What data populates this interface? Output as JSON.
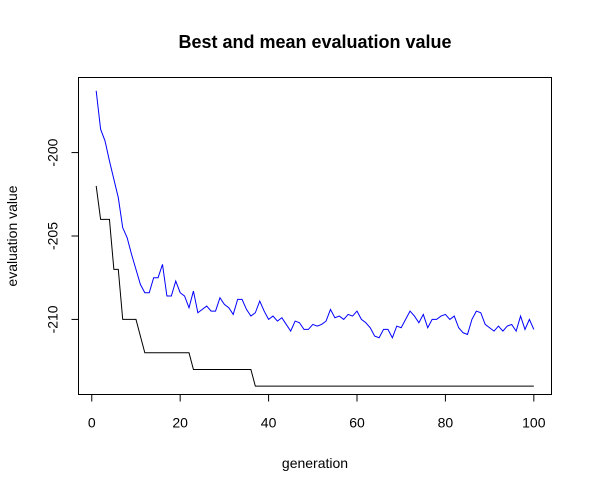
{
  "chart_data": {
    "type": "line",
    "title": "Best and mean evaluation value",
    "xlabel": "generation",
    "ylabel": "evaluation value",
    "xlim": [
      -3,
      104
    ],
    "ylim": [
      -214.5,
      -195.5
    ],
    "xticks": [
      0,
      20,
      40,
      60,
      80,
      100
    ],
    "yticks": [
      -200,
      -205,
      -210
    ],
    "grid": false,
    "legend": "none",
    "series": [
      {
        "color": "#0000ff",
        "x": [
          1,
          2,
          3,
          4,
          5,
          6,
          7,
          8,
          9,
          10,
          11,
          12,
          13,
          14,
          15,
          16,
          17,
          18,
          19,
          20,
          21,
          22,
          23,
          24,
          25,
          26,
          27,
          28,
          29,
          30,
          31,
          32,
          33,
          34,
          35,
          36,
          37,
          38,
          39,
          40,
          41,
          42,
          43,
          44,
          45,
          46,
          47,
          48,
          49,
          50,
          51,
          52,
          53,
          54,
          55,
          56,
          57,
          58,
          59,
          60,
          61,
          62,
          63,
          64,
          65,
          66,
          67,
          68,
          69,
          70,
          71,
          72,
          73,
          74,
          75,
          76,
          77,
          78,
          79,
          80,
          81,
          82,
          83,
          84,
          85,
          86,
          87,
          88,
          89,
          90,
          91,
          92,
          93,
          94,
          95,
          96,
          97,
          98,
          99,
          100
        ],
        "values": [
          -196.3,
          -198.6,
          -199.3,
          -200.5,
          -201.6,
          -202.7,
          -204.5,
          -205.1,
          -206.1,
          -207.0,
          -207.9,
          -208.4,
          -208.4,
          -207.5,
          -207.5,
          -206.7,
          -208.6,
          -208.6,
          -207.7,
          -208.4,
          -208.6,
          -209.3,
          -208.3,
          -209.6,
          -209.4,
          -209.2,
          -209.5,
          -209.5,
          -208.7,
          -209.1,
          -209.3,
          -209.7,
          -208.8,
          -208.8,
          -209.4,
          -209.8,
          -209.6,
          -208.9,
          -209.5,
          -210.0,
          -209.8,
          -210.1,
          -209.9,
          -210.3,
          -210.7,
          -210.1,
          -210.2,
          -210.6,
          -210.6,
          -210.3,
          -210.4,
          -210.3,
          -210.1,
          -209.4,
          -209.9,
          -209.8,
          -210.0,
          -209.7,
          -209.8,
          -209.5,
          -210.0,
          -210.2,
          -210.5,
          -211.0,
          -211.1,
          -210.6,
          -210.6,
          -211.1,
          -210.4,
          -210.5,
          -210.0,
          -209.5,
          -209.8,
          -210.2,
          -209.7,
          -210.5,
          -210.0,
          -210.0,
          -209.8,
          -209.7,
          -210.0,
          -209.8,
          -210.5,
          -210.8,
          -210.9,
          -210.0,
          -209.5,
          -209.6,
          -210.3,
          -210.5,
          -210.7,
          -210.4,
          -210.7,
          -210.4,
          -210.3,
          -210.7,
          -209.8,
          -210.6,
          -210.0,
          -210.6
        ]
      },
      {
        "color": "#000000",
        "x": [
          1,
          2,
          3,
          4,
          5,
          6,
          7,
          8,
          9,
          10,
          11,
          12,
          13,
          14,
          15,
          16,
          17,
          18,
          19,
          20,
          21,
          22,
          23,
          24,
          25,
          26,
          27,
          28,
          29,
          30,
          31,
          32,
          33,
          34,
          35,
          36,
          37,
          38,
          39,
          40,
          41,
          42,
          43,
          44,
          45,
          46,
          47,
          48,
          49,
          50,
          51,
          52,
          53,
          54,
          55,
          56,
          57,
          58,
          59,
          60,
          61,
          62,
          63,
          64,
          65,
          66,
          67,
          68,
          69,
          70,
          71,
          72,
          73,
          74,
          75,
          76,
          77,
          78,
          79,
          80,
          81,
          82,
          83,
          84,
          85,
          86,
          87,
          88,
          89,
          90,
          91,
          92,
          93,
          94,
          95,
          96,
          97,
          98,
          99,
          100
        ],
        "values": [
          -202,
          -204,
          -204,
          -204,
          -207,
          -207,
          -210,
          -210,
          -210,
          -210,
          -211,
          -212,
          -212,
          -212,
          -212,
          -212,
          -212,
          -212,
          -212,
          -212,
          -212,
          -212,
          -213,
          -213,
          -213,
          -213,
          -213,
          -213,
          -213,
          -213,
          -213,
          -213,
          -213,
          -213,
          -213,
          -213,
          -214,
          -214,
          -214,
          -214,
          -214,
          -214,
          -214,
          -214,
          -214,
          -214,
          -214,
          -214,
          -214,
          -214,
          -214,
          -214,
          -214,
          -214,
          -214,
          -214,
          -214,
          -214,
          -214,
          -214,
          -214,
          -214,
          -214,
          -214,
          -214,
          -214,
          -214,
          -214,
          -214,
          -214,
          -214,
          -214,
          -214,
          -214,
          -214,
          -214,
          -214,
          -214,
          -214,
          -214,
          -214,
          -214,
          -214,
          -214,
          -214,
          -214,
          -214,
          -214,
          -214,
          -214,
          -214,
          -214,
          -214,
          -214,
          -214,
          -214,
          -214,
          -214,
          -214,
          -214
        ]
      }
    ]
  }
}
